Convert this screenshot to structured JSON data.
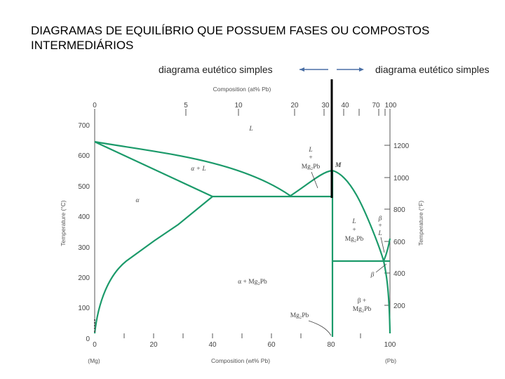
{
  "title": "DIAGRAMAS DE EQUILÍBRIO QUE POSSUEM FASES OU COMPOSTOS INTERMEDIÁRIOS",
  "caption_left": "diagrama eutético simples",
  "caption_right": "diagrama eutético simples",
  "colors": {
    "phase_line": "#1b9a6a",
    "divider": "#000000",
    "arrow": "#4a6fa5"
  },
  "diagram": {
    "top_axis_title": "Composition (at% Pb)",
    "top_ticks": [
      "0",
      "5",
      "10",
      "20",
      "30",
      "40",
      "70",
      "100"
    ],
    "bottom_axis_title": "Composition (wt% Pb)",
    "bottom_ticks": [
      "0",
      "20",
      "40",
      "60",
      "80",
      "100"
    ],
    "left_label": "(Mg)",
    "right_label": "(Pb)",
    "left_axis_title": "Temperature (°C)",
    "left_ticks": [
      "0",
      "100",
      "200",
      "300",
      "400",
      "500",
      "600",
      "700"
    ],
    "right_axis_title": "Temperature (°F)",
    "right_ticks": [
      "200",
      "400",
      "600",
      "800",
      "1000",
      "1200"
    ],
    "regions": {
      "liquid": "L",
      "alpha": "α",
      "alpha_plus_liquid": "α + L",
      "alpha_plus_compound": "α + Mg₂Pb",
      "compound_point": "M",
      "compound_bottom": "Mg₂Pb",
      "l_compound_left_top": "L",
      "l_compound_left_plus": "+",
      "l_compound_left_bottom": "Mg₂Pb",
      "l_compound_right_top": "L",
      "l_compound_right_plus": "+",
      "l_compound_right_bottom": "Mg₂Pb",
      "beta": "β",
      "beta_l_top": "β",
      "beta_l_plus": "+",
      "beta_l_bottom": "L",
      "beta_compound_top": "β +",
      "beta_compound_bottom": "Mg₂Pb"
    }
  }
}
